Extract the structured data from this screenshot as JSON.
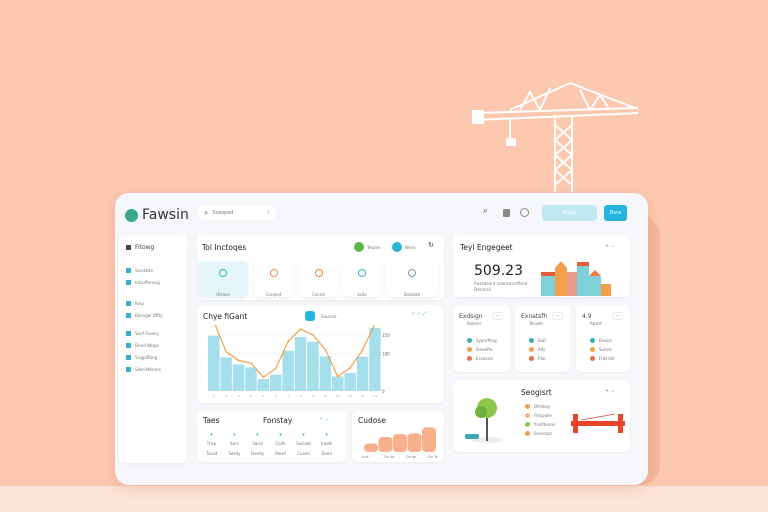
{
  "header": {
    "app_name": "Fawsin",
    "search_placeholder": "Sussped",
    "button_light": "Ssusp",
    "button_primary": "Bvre"
  },
  "sidebar": {
    "items": [
      {
        "label": "Fitowg"
      },
      {
        "label": "Sovdatte"
      },
      {
        "label": "Intsuffensng"
      },
      {
        "label": "Rinp"
      },
      {
        "label": "Desnge/ Dffty"
      },
      {
        "label": "Souf Rieany"
      },
      {
        "label": "Dnod Ntope"
      },
      {
        "label": "Slsgpifiting"
      },
      {
        "label": "Sdsd Ndsnce"
      }
    ]
  },
  "categories_card": {
    "title": "Tol Inctoqes",
    "toggle1": "Tespse",
    "toggle2": "Nleisr",
    "tiles": [
      {
        "label": "Ulsane",
        "color": "#3bb8b0"
      },
      {
        "label": "Corqnet",
        "color": "#e98a6a"
      },
      {
        "label": "Csnnd",
        "color": "#f07a3e"
      },
      {
        "label": "Ssdv",
        "color": "#3ab0c8"
      },
      {
        "label": "Dsestatl",
        "color": "#7a98a8"
      }
    ]
  },
  "engagement": {
    "title": "Teyl Engegeet",
    "value": "509.23",
    "caption": "Fwssdeant ndanstnnsffesd",
    "caption2": "Desaceil"
  },
  "chart_data": {
    "type": "bar",
    "title": "Chye fiGant",
    "badge": "Seuscor",
    "y_ticks": [
      "150",
      "100",
      "0"
    ],
    "ylim": [
      0,
      180
    ],
    "categories": [
      "1",
      "2",
      "3",
      "4",
      "5",
      "6",
      "7",
      "8",
      "9",
      "10",
      "11",
      "12",
      "13",
      "14"
    ],
    "series": [
      {
        "type": "bar",
        "values": [
          148,
          90,
          71,
          63,
          32,
          44,
          108,
          145,
          132,
          93,
          39,
          48,
          92,
          169
        ]
      },
      {
        "type": "line",
        "values": [
          187,
          105,
          82,
          75,
          37,
          60,
          133,
          166,
          150,
          111,
          39,
          62,
          110,
          180
        ]
      }
    ],
    "colors": {
      "bar": "#a6dfec",
      "line": "#f5a04a"
    }
  },
  "table_card": {
    "title": "Taes",
    "subtitle": "Fonstay",
    "cols": [
      {
        "a": "Tnsp",
        "b": "Tsusd"
      },
      {
        "a": "Sarn",
        "b": "Sesdy"
      },
      {
        "a": "Sarid",
        "b": "Deedy"
      },
      {
        "a": "Caits",
        "b": "Mesd"
      },
      {
        "a": "Sulsaet",
        "b": "Cueda"
      },
      {
        "a": "Iraett",
        "b": "Deed"
      }
    ]
  },
  "orange_card": {
    "title": "Cudose",
    "x_labels": [
      "Auk",
      "Do de",
      "De de",
      "Da Te"
    ],
    "values": [
      28,
      50,
      60,
      62,
      82
    ],
    "color": "#f7b08a"
  },
  "mini_cards": [
    {
      "title": "Exdsign",
      "sub": "Relarel",
      "items": [
        "Syparfting",
        "Sneaifie",
        "Essavels"
      ]
    },
    {
      "title": "Exnatsfh",
      "sub": "Tenseh",
      "items": [
        "Sufr",
        "Aits",
        "Rlor"
      ]
    },
    {
      "title": "4,9",
      "sub": "Rpsrd",
      "items": [
        "Deoiss",
        "Sulset",
        "Frdeclel"
      ]
    }
  ],
  "support_card": {
    "title": "Seogisrt",
    "items": [
      "Dfrdeuy",
      "Fldspaler",
      "Ynsfduene",
      "Srandoar"
    ]
  }
}
